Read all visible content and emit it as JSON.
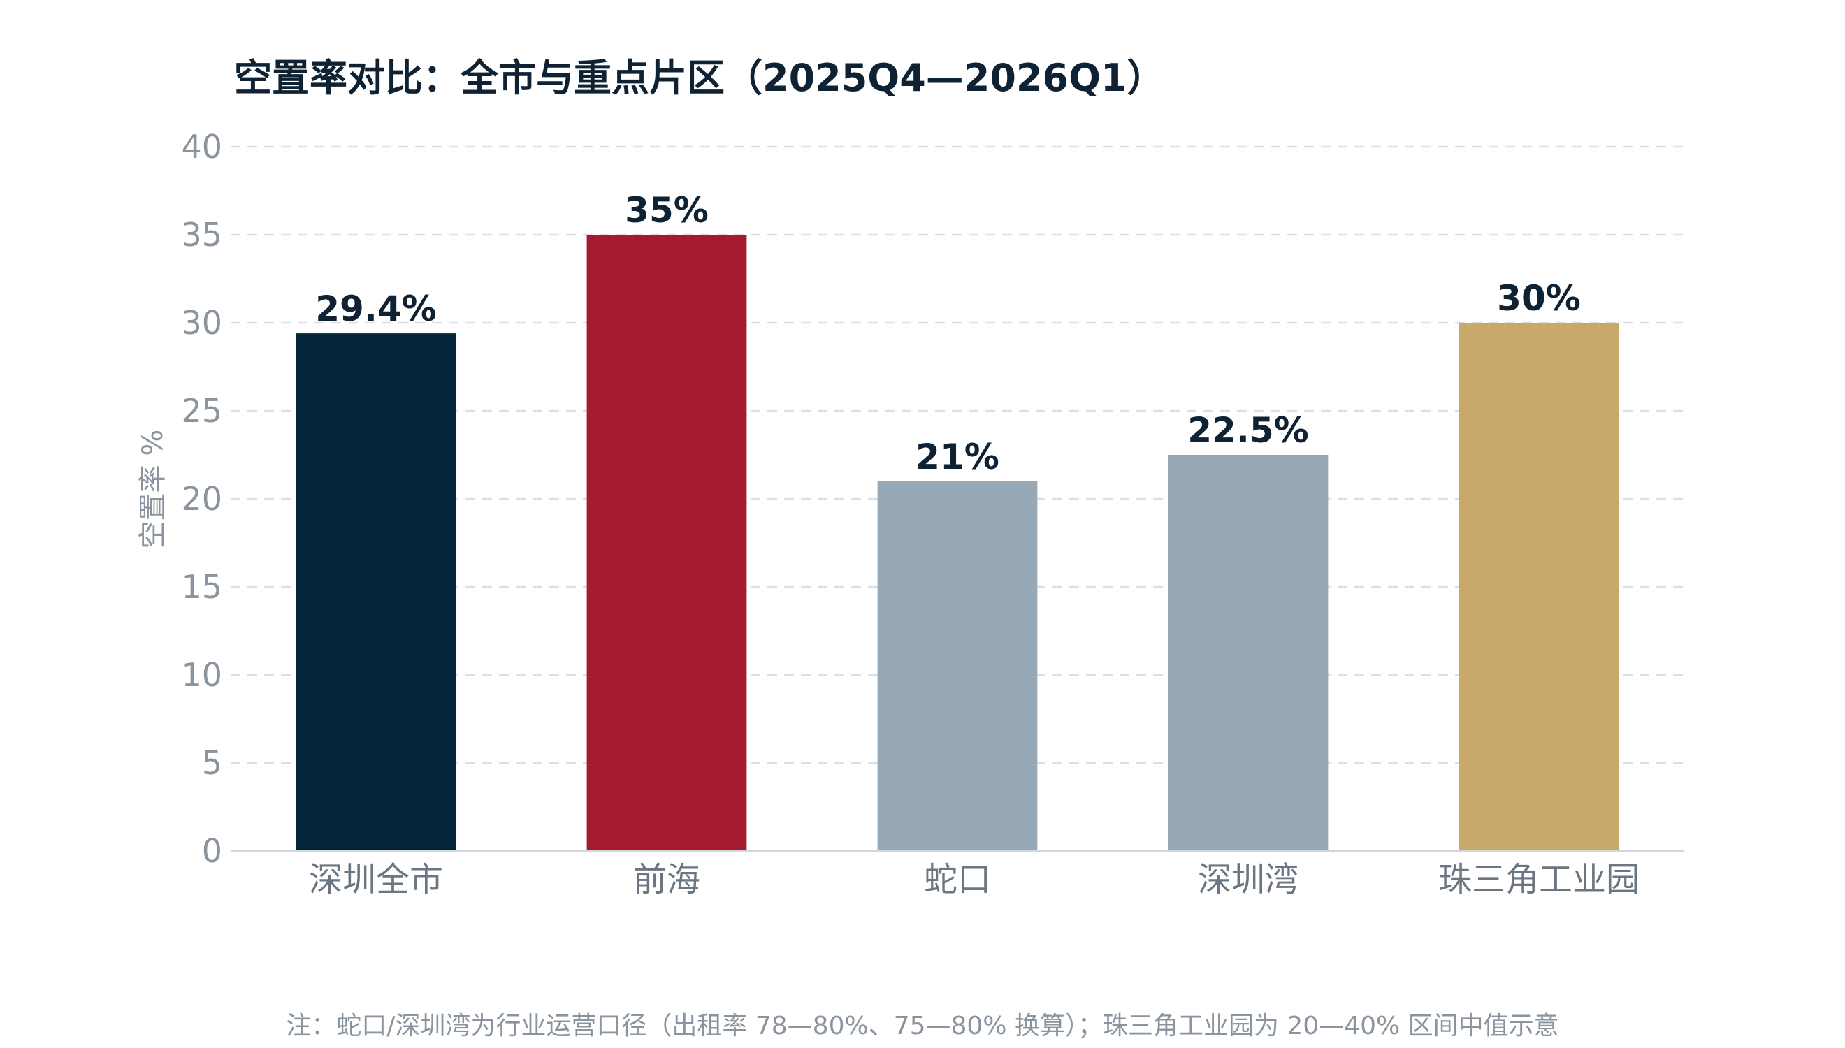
{
  "chart_data": {
    "type": "bar",
    "title": "空置率对比：全市与重点片区（2025Q4—2026Q1）",
    "xlabel": "",
    "ylabel": "空置率 %",
    "ylim": [
      0,
      40
    ],
    "yticks": [
      0,
      5,
      10,
      15,
      20,
      25,
      30,
      35,
      40
    ],
    "grid": true,
    "categories": [
      "深圳全市",
      "前海",
      "蛇口",
      "深圳湾",
      "珠三角工业园"
    ],
    "values": [
      29.4,
      35,
      21,
      22.5,
      30
    ],
    "value_labels": [
      "29.4%",
      "35%",
      "21%",
      "22.5%",
      "30%"
    ],
    "colors": [
      "#04263a",
      "#a51a2f",
      "#97a9b6",
      "#97a9b6",
      "#c8a96a"
    ],
    "note": "注：蛇口/深圳湾为行业运营口径（出租率 78—80%、75—80% 换算）；珠三角工业园为 20—40% 区间中值示意"
  }
}
